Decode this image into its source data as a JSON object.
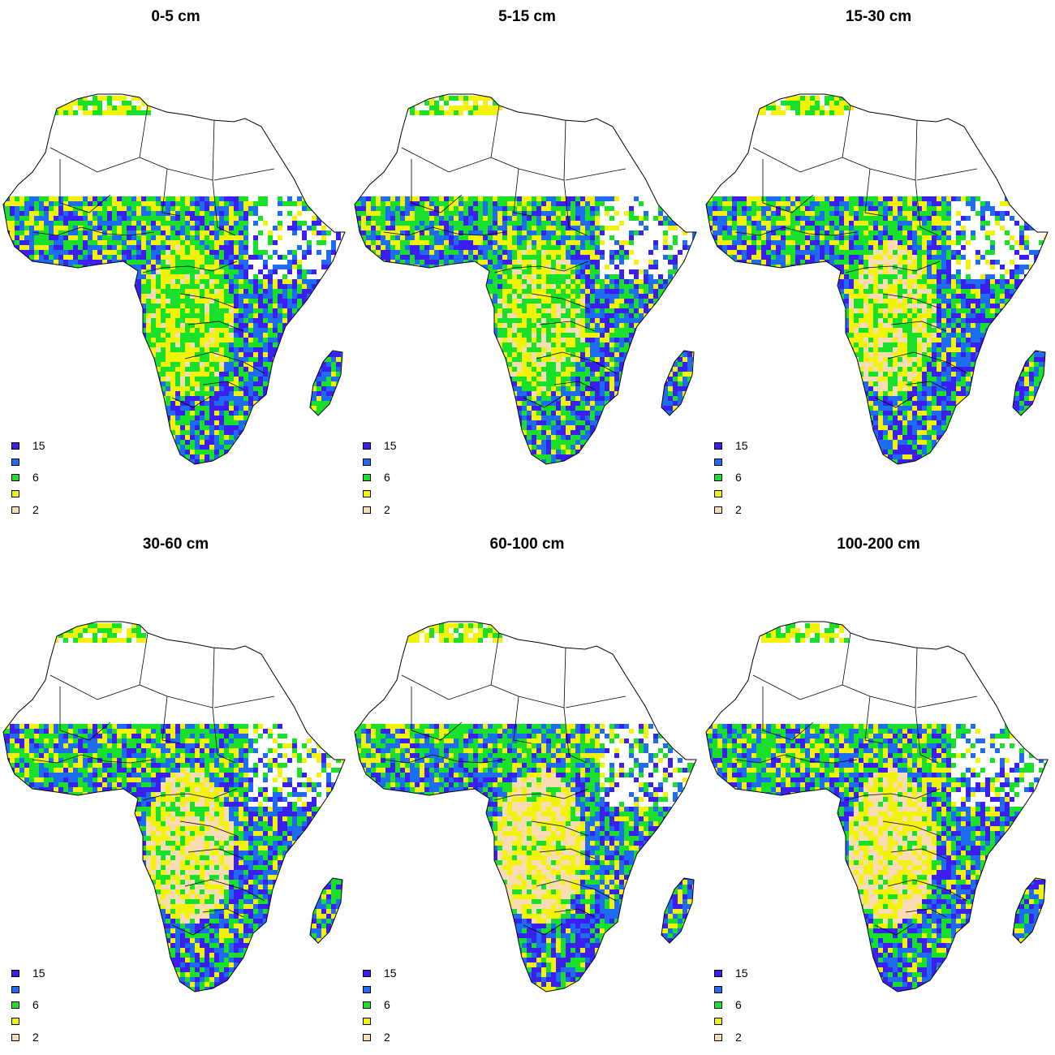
{
  "map": {
    "panels": [
      {
        "title": "0-5 cm"
      },
      {
        "title": "5-15 cm"
      },
      {
        "title": "15-30 cm"
      },
      {
        "title": "30-60 cm"
      },
      {
        "title": "60-100 cm"
      },
      {
        "title": "100-200 cm"
      }
    ],
    "legend": [
      {
        "label": "15",
        "color": "#3a1ff0"
      },
      {
        "label": "",
        "color": "#1d6cf2"
      },
      {
        "label": "6",
        "color": "#19e02a"
      },
      {
        "label": "",
        "color": "#f2f20a"
      },
      {
        "label": "2",
        "color": "#f7dcb4"
      }
    ],
    "colors": {
      "outline": "#000000",
      "background": "#ffffff"
    }
  }
}
